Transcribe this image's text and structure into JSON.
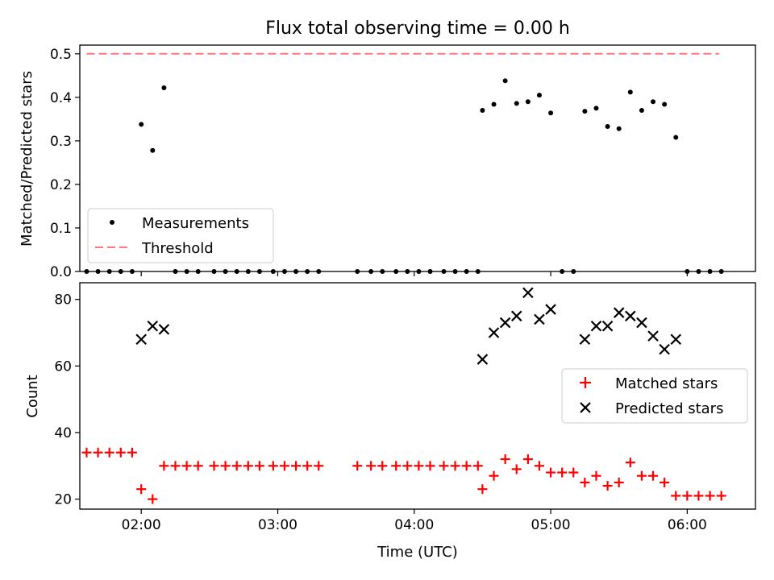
{
  "chart_data": [
    {
      "type": "scatter",
      "title": "Flux total observing time = 0.00 h",
      "ylabel": "Matched/Predicted stars",
      "xlabel": "",
      "xlim": [
        "01:33",
        "06:30"
      ],
      "ylim": [
        0,
        0.52
      ],
      "x_tick_labels": [
        "02:00",
        "03:00",
        "04:00",
        "05:00",
        "06:00"
      ],
      "y_ticks": [
        "0.0",
        "0.1",
        "0.2",
        "0.3",
        "0.4",
        "0.5"
      ],
      "legend": {
        "position": "lower-left",
        "entries": [
          "Measurements",
          "Threshold"
        ]
      },
      "series": [
        {
          "name": "Measurements",
          "marker": "dot",
          "color": "#000000",
          "points": [
            [
              "01:36",
              0
            ],
            [
              "01:41",
              0
            ],
            [
              "01:46",
              0
            ],
            [
              "01:51",
              0
            ],
            [
              "01:56",
              0
            ],
            [
              "02:00",
              0.338
            ],
            [
              "02:05",
              0.278
            ],
            [
              "02:10",
              0.422
            ],
            [
              "02:15",
              0
            ],
            [
              "02:20",
              0
            ],
            [
              "02:25",
              0
            ],
            [
              "02:32",
              0
            ],
            [
              "02:37",
              0
            ],
            [
              "02:42",
              0
            ],
            [
              "02:47",
              0
            ],
            [
              "02:52",
              0
            ],
            [
              "02:58",
              0
            ],
            [
              "03:03",
              0
            ],
            [
              "03:08",
              0
            ],
            [
              "03:13",
              0
            ],
            [
              "03:18",
              0
            ],
            [
              "03:35",
              0
            ],
            [
              "03:41",
              0
            ],
            [
              "03:46",
              0
            ],
            [
              "03:52",
              0
            ],
            [
              "03:57",
              0
            ],
            [
              "04:02",
              0
            ],
            [
              "04:07",
              0
            ],
            [
              "04:13",
              0
            ],
            [
              "04:18",
              0
            ],
            [
              "04:23",
              0
            ],
            [
              "04:28",
              0
            ],
            [
              "04:30",
              0.37
            ],
            [
              "04:35",
              0.384
            ],
            [
              "04:40",
              0.438
            ],
            [
              "04:45",
              0.386
            ],
            [
              "04:50",
              0.39
            ],
            [
              "04:55",
              0.405
            ],
            [
              "05:00",
              0.364
            ],
            [
              "05:05",
              0
            ],
            [
              "05:10",
              0
            ],
            [
              "05:15",
              0.368
            ],
            [
              "05:20",
              0.375
            ],
            [
              "05:25",
              0.333
            ],
            [
              "05:30",
              0.328
            ],
            [
              "05:35",
              0.412
            ],
            [
              "05:40",
              0.37
            ],
            [
              "05:45",
              0.39
            ],
            [
              "05:50",
              0.384
            ],
            [
              "05:55",
              0.308
            ],
            [
              "06:00",
              0
            ],
            [
              "06:05",
              0
            ],
            [
              "06:10",
              0
            ],
            [
              "06:15",
              0
            ]
          ]
        },
        {
          "name": "Threshold",
          "marker": "dashed-line",
          "color": "#ff7777",
          "points": [
            [
              "01:36",
              0.5
            ],
            [
              "06:14",
              0.5
            ]
          ]
        }
      ]
    },
    {
      "type": "scatter",
      "title": "",
      "ylabel": "Count",
      "xlabel": "Time (UTC)",
      "xlim": [
        "01:33",
        "06:30"
      ],
      "ylim": [
        17,
        85
      ],
      "x_tick_labels": [
        "02:00",
        "03:00",
        "04:00",
        "05:00",
        "06:00"
      ],
      "y_ticks": [
        "20",
        "40",
        "60",
        "80"
      ],
      "legend": {
        "position": "center-right",
        "entries": [
          "Matched stars",
          "Predicted stars"
        ]
      },
      "series": [
        {
          "name": "Matched stars",
          "marker": "plus",
          "color": "#ff0000",
          "points": [
            [
              "01:36",
              34
            ],
            [
              "01:41",
              34
            ],
            [
              "01:46",
              34
            ],
            [
              "01:51",
              34
            ],
            [
              "01:56",
              34
            ],
            [
              "02:00",
              23
            ],
            [
              "02:05",
              20
            ],
            [
              "02:10",
              30
            ],
            [
              "02:15",
              30
            ],
            [
              "02:20",
              30
            ],
            [
              "02:25",
              30
            ],
            [
              "02:32",
              30
            ],
            [
              "02:37",
              30
            ],
            [
              "02:42",
              30
            ],
            [
              "02:47",
              30
            ],
            [
              "02:52",
              30
            ],
            [
              "02:58",
              30
            ],
            [
              "03:03",
              30
            ],
            [
              "03:08",
              30
            ],
            [
              "03:13",
              30
            ],
            [
              "03:18",
              30
            ],
            [
              "03:35",
              30
            ],
            [
              "03:41",
              30
            ],
            [
              "03:46",
              30
            ],
            [
              "03:52",
              30
            ],
            [
              "03:57",
              30
            ],
            [
              "04:02",
              30
            ],
            [
              "04:07",
              30
            ],
            [
              "04:13",
              30
            ],
            [
              "04:18",
              30
            ],
            [
              "04:23",
              30
            ],
            [
              "04:28",
              30
            ],
            [
              "04:30",
              23
            ],
            [
              "04:35",
              27
            ],
            [
              "04:40",
              32
            ],
            [
              "04:45",
              29
            ],
            [
              "04:50",
              32
            ],
            [
              "04:55",
              30
            ],
            [
              "05:00",
              28
            ],
            [
              "05:05",
              28
            ],
            [
              "05:10",
              28
            ],
            [
              "05:15",
              25
            ],
            [
              "05:20",
              27
            ],
            [
              "05:25",
              24
            ],
            [
              "05:30",
              25
            ],
            [
              "05:35",
              31
            ],
            [
              "05:40",
              27
            ],
            [
              "05:45",
              27
            ],
            [
              "05:50",
              25
            ],
            [
              "05:55",
              21
            ],
            [
              "06:00",
              21
            ],
            [
              "06:05",
              21
            ],
            [
              "06:10",
              21
            ],
            [
              "06:15",
              21
            ]
          ]
        },
        {
          "name": "Predicted stars",
          "marker": "x",
          "color": "#000000",
          "points": [
            [
              "02:00",
              68
            ],
            [
              "02:05",
              72
            ],
            [
              "02:10",
              71
            ],
            [
              "04:30",
              62
            ],
            [
              "04:35",
              70
            ],
            [
              "04:40",
              73
            ],
            [
              "04:45",
              75
            ],
            [
              "04:50",
              82
            ],
            [
              "04:55",
              74
            ],
            [
              "05:00",
              77
            ],
            [
              "05:15",
              68
            ],
            [
              "05:20",
              72
            ],
            [
              "05:25",
              72
            ],
            [
              "05:30",
              76
            ],
            [
              "05:35",
              75
            ],
            [
              "05:40",
              73
            ],
            [
              "05:45",
              69
            ],
            [
              "05:50",
              65
            ],
            [
              "05:55",
              68
            ]
          ]
        }
      ]
    }
  ]
}
